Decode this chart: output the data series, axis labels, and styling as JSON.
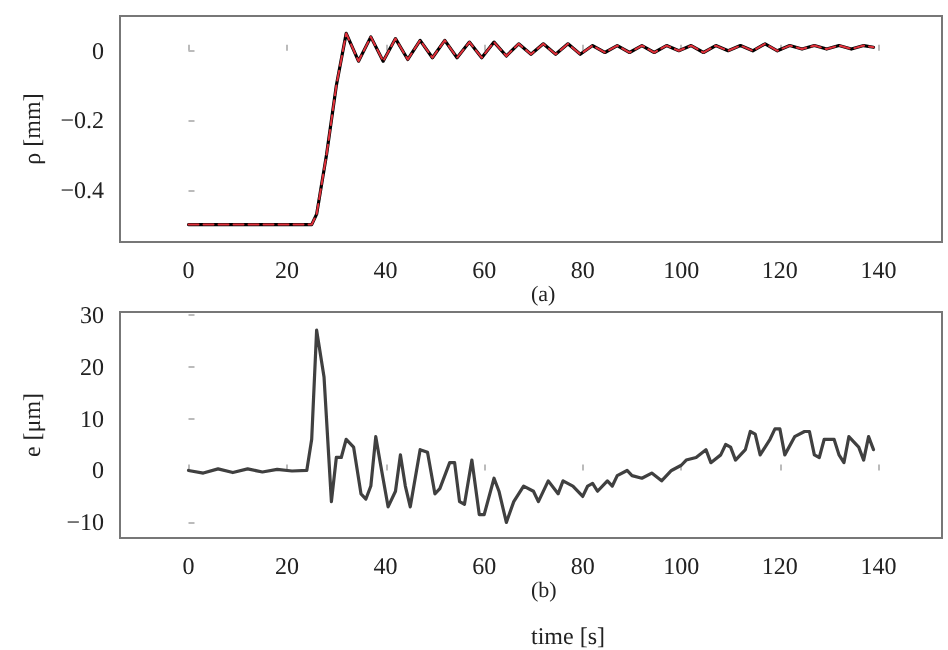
{
  "chart_data": [
    {
      "type": "line",
      "ylabel": "ρ [mm]",
      "annotations": [
        "(a)"
      ],
      "xlim": [
        -13.9,
        152.9
      ],
      "xticks": [
        0,
        20,
        40,
        60,
        80,
        100,
        120,
        140
      ],
      "ylim": [
        -0.55,
        0.1
      ],
      "yticks": [
        -0.4,
        -0.2,
        0
      ],
      "grid": false,
      "marker": "none",
      "x": [
        0,
        25,
        26,
        28,
        30,
        32,
        34.5,
        37,
        39.5,
        42,
        44.5,
        47,
        49.5,
        52,
        54.5,
        57,
        59.5,
        62,
        64.5,
        67,
        69.5,
        72,
        74.5,
        77,
        79.5,
        82,
        84.5,
        87,
        89.5,
        92,
        94.5,
        97,
        99.5,
        102,
        104.5,
        107,
        109.5,
        112,
        114.5,
        117,
        119.5,
        122,
        124.5,
        127,
        129.5,
        132,
        134.5,
        137,
        139
      ],
      "series": [
        {
          "color": "#000000",
          "line_style": "solid",
          "values": [
            -0.5,
            -0.5,
            -0.47,
            -0.3,
            -0.1,
            0.05,
            -0.03,
            0.04,
            -0.03,
            0.035,
            -0.025,
            0.03,
            -0.02,
            0.03,
            -0.02,
            0.025,
            -0.02,
            0.025,
            -0.015,
            0.02,
            -0.01,
            0.02,
            -0.01,
            0.02,
            -0.01,
            0.015,
            -0.005,
            0.015,
            -0.005,
            0.015,
            -0.005,
            0.015,
            0,
            0.015,
            -0.005,
            0.015,
            0,
            0.015,
            0,
            0.02,
            0,
            0.015,
            0.005,
            0.015,
            0.005,
            0.015,
            0.005,
            0.015,
            0.01
          ]
        },
        {
          "color": "#e0303a",
          "line_style": "dashed",
          "values": [
            -0.5,
            -0.5,
            -0.47,
            -0.3,
            -0.1,
            0.05,
            -0.03,
            0.04,
            -0.03,
            0.035,
            -0.025,
            0.03,
            -0.02,
            0.03,
            -0.02,
            0.025,
            -0.02,
            0.025,
            -0.015,
            0.02,
            -0.01,
            0.02,
            -0.01,
            0.02,
            -0.01,
            0.015,
            -0.005,
            0.015,
            -0.005,
            0.015,
            -0.005,
            0.015,
            0,
            0.015,
            -0.005,
            0.015,
            0,
            0.015,
            0,
            0.02,
            0,
            0.015,
            0.005,
            0.015,
            0.005,
            0.015,
            0.005,
            0.015,
            0.01
          ]
        }
      ]
    },
    {
      "type": "line",
      "xlabel": "time [s]",
      "ylabel": "e [μm]",
      "annotations": [
        "(b)"
      ],
      "xlim": [
        -13.9,
        152.9
      ],
      "xticks": [
        0,
        20,
        40,
        60,
        80,
        100,
        120,
        140
      ],
      "ylim": [
        -13,
        30.5
      ],
      "yticks": [
        -10,
        0,
        10,
        20,
        30
      ],
      "grid": false,
      "marker": "none",
      "x": [
        0,
        3,
        6,
        9,
        12,
        15,
        18,
        21,
        24,
        25,
        26,
        27.5,
        29,
        30,
        31,
        32,
        33.5,
        35,
        36,
        37,
        38,
        39,
        40.5,
        42,
        43,
        44,
        45,
        47,
        48.5,
        50,
        51,
        53,
        54,
        55,
        56,
        57.5,
        59,
        60,
        62,
        63,
        64.5,
        66,
        68,
        70,
        71,
        73,
        75,
        76,
        78,
        80,
        81,
        82,
        83,
        85,
        86,
        87,
        89,
        90,
        92,
        94,
        96,
        98,
        100,
        101,
        103,
        105,
        106,
        108,
        109,
        110,
        111,
        113,
        114,
        115,
        116,
        118,
        119,
        120,
        121,
        123,
        125,
        126,
        127,
        128,
        129,
        131,
        132,
        133,
        134,
        135,
        136,
        137,
        138,
        139
      ],
      "series": [
        {
          "color": "#404040",
          "line_style": "solid",
          "values": [
            0,
            -0.5,
            0.3,
            -0.4,
            0.3,
            -0.3,
            0.2,
            -0.1,
            0,
            6,
            27,
            18,
            -6,
            2.5,
            2.5,
            6,
            4.5,
            -4.5,
            -5.5,
            -3,
            6.5,
            1,
            -7,
            -4,
            3,
            -3,
            -7,
            4,
            3.5,
            -4.5,
            -3.5,
            1.5,
            1.5,
            -6,
            -6.5,
            2,
            -8.5,
            -8.5,
            -1.5,
            -4,
            -10,
            -6,
            -3,
            -4,
            -6,
            -2,
            -4.5,
            -2,
            -3,
            -5,
            -3,
            -2.5,
            -4,
            -2,
            -3,
            -1,
            0,
            -1,
            -1.5,
            -0.5,
            -2,
            0,
            1,
            2,
            2.5,
            4,
            1.5,
            3,
            5,
            4.5,
            2,
            4,
            7.5,
            7,
            3,
            6,
            8,
            8,
            3,
            6.5,
            7.5,
            7.5,
            3,
            2.5,
            6,
            6,
            3,
            1.5,
            6.5,
            5.5,
            4.5,
            2,
            6.5,
            4
          ]
        }
      ]
    }
  ]
}
